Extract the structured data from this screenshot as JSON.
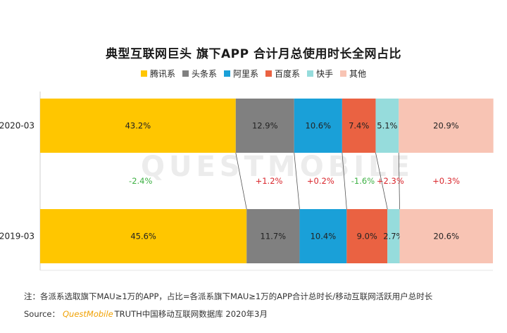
{
  "title": "典型互联网巨头 旗下APP 合计月总使用时长全网占比",
  "legend": [
    {
      "label": "腾讯系",
      "color": "#ffc600"
    },
    {
      "label": "头条系",
      "color": "#808080"
    },
    {
      "label": "阿里系",
      "color": "#1aa0d8"
    },
    {
      "label": "百度系",
      "color": "#ea6242"
    },
    {
      "label": "快手",
      "color": "#96dcdc"
    },
    {
      "label": "其他",
      "color": "#f8c4b4"
    }
  ],
  "watermark": "QUESTMOBILE",
  "chart_data": {
    "type": "bar",
    "stacked": true,
    "orientation": "horizontal",
    "categories": [
      "2020-03",
      "2019-03"
    ],
    "series": [
      {
        "name": "腾讯系",
        "values": [
          43.2,
          45.6
        ],
        "labels": [
          "43.2%",
          "45.6%"
        ],
        "change": "-2.4%"
      },
      {
        "name": "头条系",
        "values": [
          12.9,
          11.7
        ],
        "labels": [
          "12.9%",
          "11.7%"
        ],
        "change": "+1.2%"
      },
      {
        "name": "阿里系",
        "values": [
          10.6,
          10.4
        ],
        "labels": [
          "10.6%",
          "10.4%"
        ],
        "change": "+0.2%"
      },
      {
        "name": "百度系",
        "values": [
          7.4,
          9.0
        ],
        "labels": [
          "7.4%",
          "9.0%"
        ],
        "change": "-1.6%"
      },
      {
        "name": "快手",
        "values": [
          5.1,
          2.7
        ],
        "labels": [
          "5.1%",
          "2.7%"
        ],
        "change": "+2.3%"
      },
      {
        "name": "其他",
        "values": [
          20.9,
          20.6
        ],
        "labels": [
          "20.9%",
          "20.6%"
        ],
        "change": "+0.3%"
      }
    ],
    "change_colors": {
      "negative": "#3cb043",
      "positive": "#d9262c"
    },
    "xlim": [
      0,
      100
    ]
  },
  "note": "注：各派系选取旗下MAU≥1万的APP，占比=各派系旗下MAU≥1万的APP合计总时长/移动互联网活跃用户总时长",
  "source": {
    "prefix": "Source：",
    "brand": "QuestMobile",
    "truth": "TRUTH",
    "rest": " 中国移动互联网数据库 2020年3月"
  }
}
